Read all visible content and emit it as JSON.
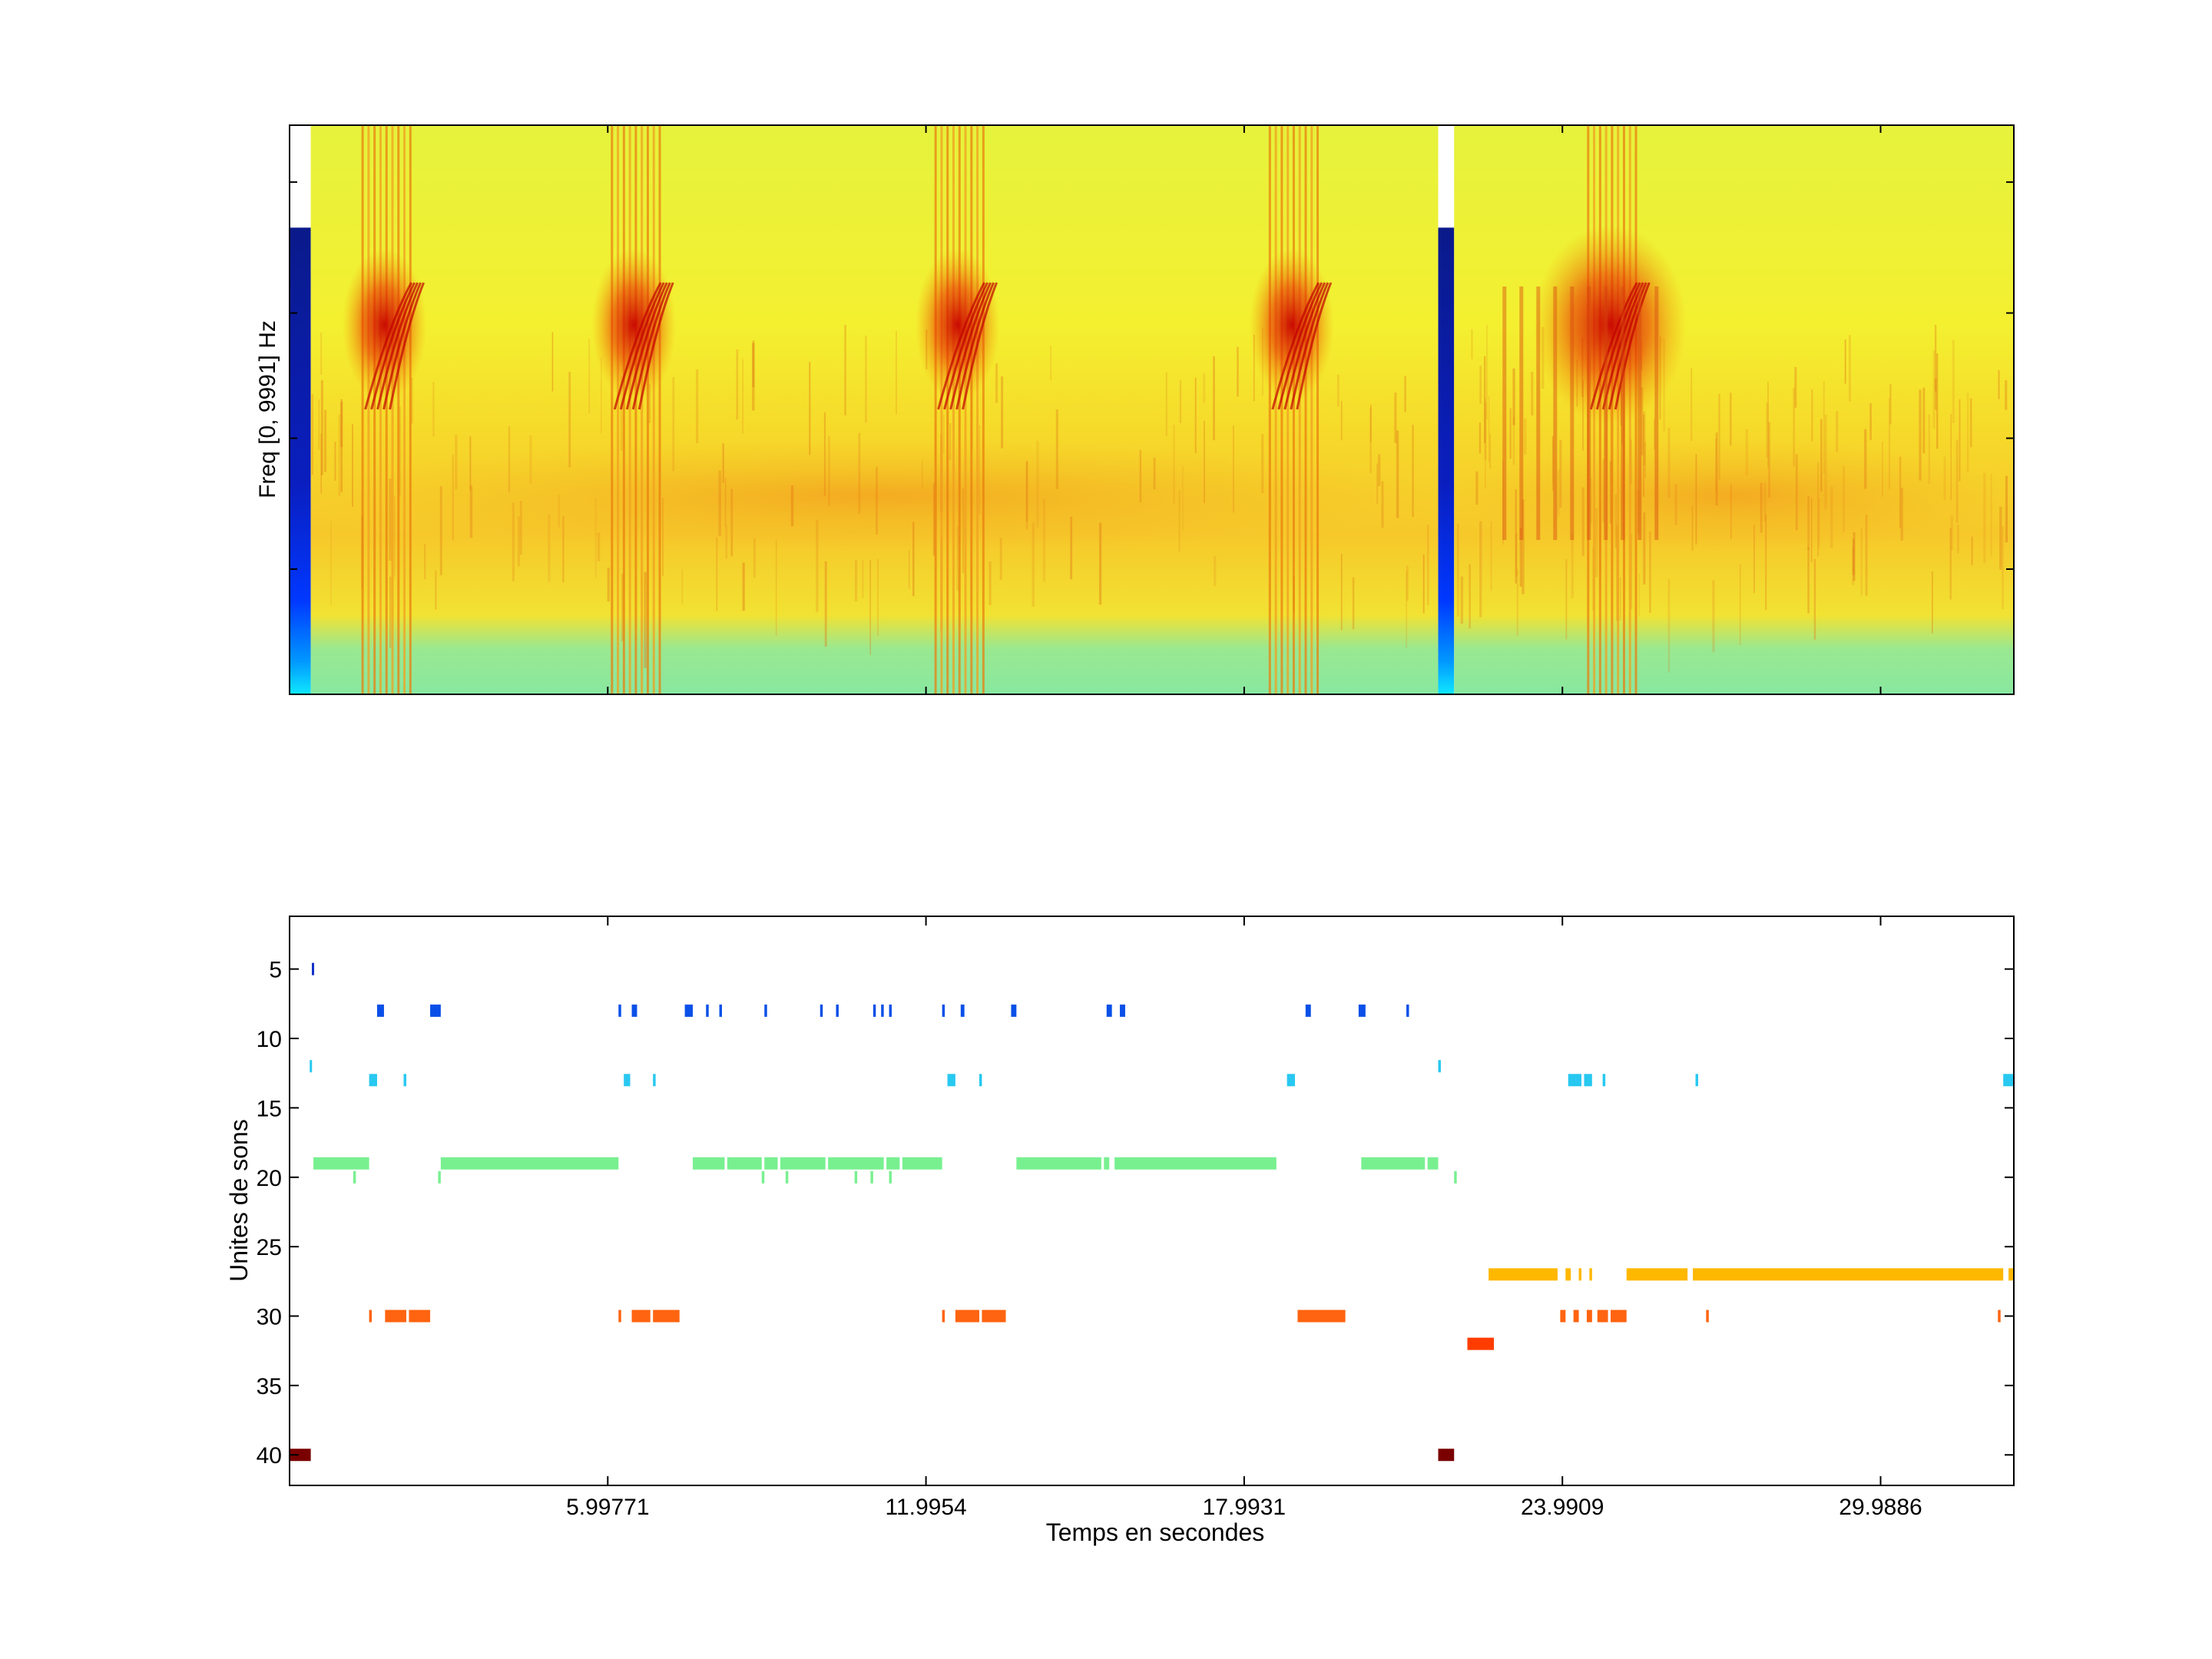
{
  "chart_data": [
    {
      "type": "heatmap",
      "ylabel": "Freq [0, 9991] Hz",
      "x_range": [
        0,
        32.5
      ],
      "y_range": [
        0,
        9991
      ],
      "colormap": "jet",
      "segments": [
        {
          "x_start": 0.0,
          "x_end": 0.4,
          "content": "color bar",
          "colors": [
            "#ffffff",
            "#0a1a8a",
            "#0030ff",
            "#00a0ff",
            "#00e0ff"
          ]
        },
        {
          "x_start": 0.4,
          "x_end": 21.65,
          "content": "spectrogram",
          "background": "#f2f23a"
        },
        {
          "x_start": 21.65,
          "x_end": 21.95,
          "content": "color bar",
          "colors": [
            "#ffffff",
            "#0a1a8a",
            "#0030ff",
            "#00a0ff",
            "#00e0ff"
          ]
        },
        {
          "x_start": 21.95,
          "x_end": 32.5,
          "content": "spectrogram",
          "background": "#f2e632"
        }
      ],
      "call_onsets": [
        1.5,
        6.2,
        12.3,
        18.6,
        24.6
      ]
    },
    {
      "type": "scatter",
      "xlabel": "Temps en secondes",
      "ylabel": "Unites de sons",
      "xlim": [
        0,
        32.5
      ],
      "ylim": [
        1.2,
        42.2
      ],
      "y_reversed": true,
      "xticks": [
        5.99771,
        11.9954,
        17.9931,
        23.9909,
        29.9886
      ],
      "xtick_labels": [
        "5.99771",
        "11.9954",
        "17.9931",
        "23.9909",
        "29.9886"
      ],
      "yticks": [
        5,
        10,
        15,
        20,
        25,
        30,
        35,
        40
      ],
      "ytick_labels": [
        "5",
        "10",
        "15",
        "20",
        "25",
        "30",
        "35",
        "40"
      ],
      "series": [
        {
          "unit": 5,
          "color": "#1030c8",
          "segments": [
            [
              0.42,
              0.46
            ]
          ]
        },
        {
          "unit": 8,
          "color": "#0a50e8",
          "segments": [
            [
              1.65,
              1.78
            ],
            [
              2.65,
              2.85
            ],
            [
              6.2,
              6.25
            ],
            [
              6.45,
              6.55
            ],
            [
              7.45,
              7.6
            ],
            [
              7.85,
              7.9
            ],
            [
              8.1,
              8.15
            ],
            [
              8.95,
              9.0
            ],
            [
              10.0,
              10.05
            ],
            [
              10.3,
              10.35
            ],
            [
              11.0,
              11.05
            ],
            [
              11.15,
              11.2
            ],
            [
              11.3,
              11.35
            ],
            [
              12.3,
              12.35
            ],
            [
              12.65,
              12.72
            ],
            [
              13.6,
              13.7
            ],
            [
              15.4,
              15.5
            ],
            [
              15.65,
              15.75
            ],
            [
              19.15,
              19.25
            ],
            [
              20.15,
              20.28
            ],
            [
              21.05,
              21.1
            ]
          ]
        },
        {
          "unit": 12,
          "color": "#28c8f0",
          "segments": [
            [
              0.38,
              0.42
            ],
            [
              21.65,
              21.7
            ]
          ]
        },
        {
          "unit": 13,
          "color": "#28c8f0",
          "segments": [
            [
              1.5,
              1.65
            ],
            [
              2.15,
              2.2
            ],
            [
              6.3,
              6.42
            ],
            [
              6.85,
              6.9
            ],
            [
              12.4,
              12.55
            ],
            [
              13.0,
              13.05
            ],
            [
              18.8,
              18.95
            ],
            [
              24.1,
              24.35
            ],
            [
              24.4,
              24.55
            ],
            [
              24.75,
              24.8
            ],
            [
              26.5,
              26.55
            ],
            [
              32.3,
              32.5
            ]
          ]
        },
        {
          "unit": 19,
          "color": "#78f090",
          "segments": [
            [
              0.45,
              1.5
            ],
            [
              2.85,
              6.2
            ],
            [
              7.6,
              8.2
            ],
            [
              8.25,
              8.9
            ],
            [
              8.95,
              9.2
            ],
            [
              9.25,
              10.1
            ],
            [
              10.15,
              11.2
            ],
            [
              11.25,
              11.5
            ],
            [
              11.55,
              12.3
            ],
            [
              13.7,
              15.3
            ],
            [
              15.35,
              15.45
            ],
            [
              15.55,
              18.6
            ],
            [
              20.2,
              21.4
            ],
            [
              21.45,
              21.65
            ]
          ]
        },
        {
          "unit": 20,
          "color": "#78f090",
          "segments": [
            [
              1.2,
              1.25
            ],
            [
              2.8,
              2.85
            ],
            [
              8.9,
              8.95
            ],
            [
              9.35,
              9.4
            ],
            [
              10.65,
              10.7
            ],
            [
              10.95,
              11.0
            ],
            [
              11.3,
              11.35
            ],
            [
              21.95,
              22.0
            ]
          ]
        },
        {
          "unit": 27,
          "color": "#ffb800",
          "segments": [
            [
              22.6,
              23.9
            ],
            [
              24.05,
              24.15
            ],
            [
              24.3,
              24.35
            ],
            [
              24.5,
              24.55
            ],
            [
              25.2,
              26.35
            ],
            [
              26.45,
              32.3
            ],
            [
              32.4,
              32.5
            ]
          ]
        },
        {
          "unit": 30,
          "color": "#ff6410",
          "segments": [
            [
              1.5,
              1.55
            ],
            [
              1.8,
              2.2
            ],
            [
              2.25,
              2.65
            ],
            [
              6.2,
              6.25
            ],
            [
              6.45,
              6.8
            ],
            [
              6.85,
              7.35
            ],
            [
              12.3,
              12.35
            ],
            [
              12.55,
              13.0
            ],
            [
              13.05,
              13.5
            ],
            [
              19.0,
              19.9
            ],
            [
              23.95,
              24.05
            ],
            [
              24.2,
              24.3
            ],
            [
              24.45,
              24.55
            ],
            [
              24.65,
              24.85
            ],
            [
              24.9,
              25.2
            ],
            [
              26.7,
              26.75
            ],
            [
              32.2,
              32.25
            ]
          ]
        },
        {
          "unit": 32,
          "color": "#ff3c00",
          "segments": [
            [
              22.2,
              22.7
            ]
          ]
        },
        {
          "unit": 40,
          "color": "#7a0000",
          "segments": [
            [
              0.0,
              0.4
            ],
            [
              21.65,
              21.95
            ]
          ]
        }
      ]
    }
  ]
}
